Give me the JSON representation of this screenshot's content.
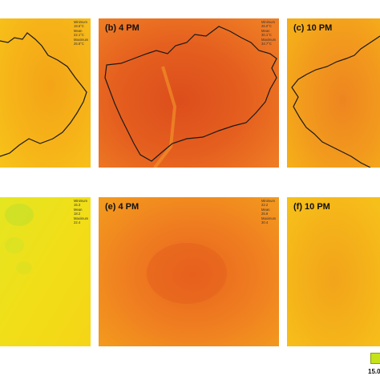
{
  "colors": {
    "pale_yellow": "#f7e017",
    "yellow_orange": "#f6b316",
    "orange": "#f08a1f",
    "deep_orange": "#e8591f",
    "red_orange": "#dd4a1a",
    "boundary": "#1a1a1a",
    "legend_green": "#c6e31a"
  },
  "panels": [
    {
      "id": "a",
      "label": "",
      "stats": [
        "Minimum",
        "18.6°C",
        "Mean",
        "22.1°C",
        "Maximum",
        "25.8°C"
      ]
    },
    {
      "id": "b",
      "label": "(b) 4 PM",
      "stats": [
        "Minimum",
        "26.0°C",
        "Mean",
        "30.1°C",
        "Maximum",
        "34.7°C"
      ]
    },
    {
      "id": "c",
      "label": "(c) 10 PM",
      "stats": []
    },
    {
      "id": "d",
      "label": "",
      "stats": [
        "Minimum",
        "15.3",
        "Mean",
        "18.2",
        "Maximum",
        "22.4"
      ]
    },
    {
      "id": "e",
      "label": "(e) 4 PM",
      "stats": [
        "Minimum",
        "22.2",
        "Mean",
        "25.6",
        "Maximum",
        "30.4"
      ]
    },
    {
      "id": "f",
      "label": "(f) 10 PM",
      "stats": []
    }
  ],
  "legend": {
    "min_label": "15.0"
  }
}
